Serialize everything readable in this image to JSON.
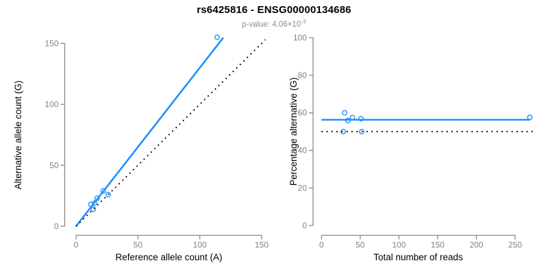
{
  "header": {
    "title": "rs6425816 - ENSG00000134686",
    "subtitle_base": "p-value: 4.06×10",
    "subtitle_exponent": "-3"
  },
  "colors": {
    "accent_blue": "#1E90FF",
    "line_black": "#000000",
    "axis_gray": "#888888",
    "tick_label_gray": "#828282",
    "axis_title_black": "#000000",
    "title_black": "#000000",
    "subtitle_gray": "#8c8c8c",
    "background": "#ffffff"
  },
  "chart_data": [
    {
      "type": "scatter",
      "panel": "allele-counts",
      "title": "",
      "xlabel": "Reference allele count (A)",
      "ylabel": "Alternative allele count (G)",
      "xlim": [
        0,
        155
      ],
      "ylim": [
        0,
        157
      ],
      "xticks": [
        0,
        50,
        100,
        150
      ],
      "yticks": [
        0,
        50,
        100,
        150
      ],
      "grid": false,
      "legend": "none",
      "point_style": "open-circle",
      "point_color": "#1E90FF",
      "points": [
        [
          114,
          155
        ],
        [
          22,
          29
        ],
        [
          26,
          26
        ],
        [
          17,
          23
        ],
        [
          15,
          19
        ],
        [
          12,
          18
        ],
        [
          14,
          14
        ]
      ],
      "lines": [
        {
          "name": "fitted-proportion-line",
          "style": "solid",
          "color": "#1E90FF",
          "x1": 0,
          "y1": 0,
          "x2": 119,
          "y2": 154.7
        },
        {
          "name": "identity-line",
          "style": "dotted",
          "color": "#000000",
          "x1": 0,
          "y1": 0,
          "x2": 153,
          "y2": 153
        }
      ]
    },
    {
      "type": "scatter",
      "panel": "percentage-vs-depth",
      "title": "",
      "xlabel": "Total number of reads",
      "ylabel": "Percentage alternative (G)",
      "xlim": [
        0,
        280
      ],
      "ylim": [
        0,
        100
      ],
      "xticks": [
        0,
        50,
        100,
        150,
        200,
        250
      ],
      "yticks": [
        0,
        20,
        40,
        60,
        80,
        100
      ],
      "grid": false,
      "legend": "none",
      "point_style": "open-circle",
      "point_color": "#1E90FF",
      "points": [
        [
          269,
          57.6
        ],
        [
          51,
          56.9
        ],
        [
          52,
          50.0
        ],
        [
          40,
          57.5
        ],
        [
          34,
          55.9
        ],
        [
          30,
          60.0
        ],
        [
          28,
          50.0
        ]
      ],
      "lines": [
        {
          "name": "mean-percentage-line",
          "style": "solid",
          "color": "#1E90FF",
          "x1": 0,
          "y1": 56.3,
          "x2": 269,
          "y2": 56.3
        },
        {
          "name": "null-fifty-percent-line",
          "style": "dotted",
          "color": "#000000",
          "x1": 0,
          "y1": 50,
          "x2": 277,
          "y2": 50
        }
      ]
    }
  ]
}
